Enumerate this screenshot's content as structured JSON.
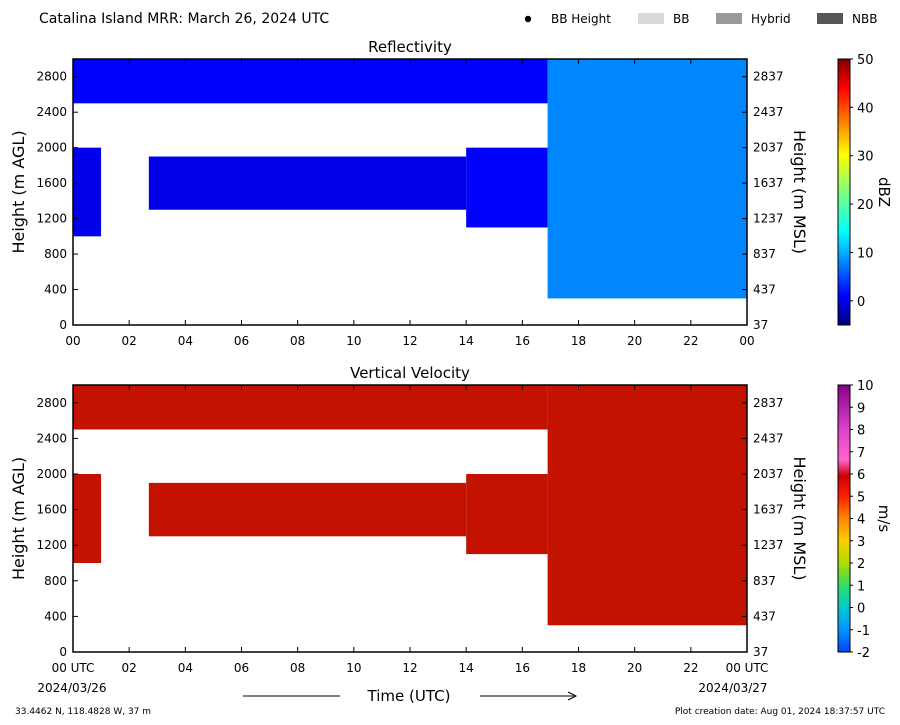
{
  "header": {
    "title": "Catalina Island MRR:  March 26, 2024 UTC",
    "legend": [
      {
        "label": "BB Height",
        "color": "#000000",
        "kind": "dot"
      },
      {
        "label": "BB",
        "color": "#d9d9d9",
        "kind": "box"
      },
      {
        "label": "Hybrid",
        "color": "#999999",
        "kind": "box"
      },
      {
        "label": "NBB",
        "color": "#555555",
        "kind": "box"
      }
    ]
  },
  "footer": {
    "location": "33.4462 N, 118.4828 W, 37 m",
    "creation": "Plot creation date: Aug 01, 2024 18:37:57 UTC",
    "xlabel": "Time (UTC)",
    "start_date": "2024/03/26",
    "end_date": "2024/03/27"
  },
  "chart_data": [
    {
      "type": "heatmap",
      "title": "Reflectivity",
      "ylabel": "Height (m AGL)",
      "ylabel_right": "Height (m MSL)",
      "x_ticks": [
        "00",
        "02",
        "04",
        "06",
        "08",
        "10",
        "12",
        "14",
        "16",
        "18",
        "20",
        "22",
        "00"
      ],
      "xlim": [
        0,
        24
      ],
      "y_ticks": [
        0,
        400,
        800,
        1200,
        1600,
        2000,
        2400,
        2800
      ],
      "y_ticks_right": [
        37,
        437,
        837,
        1237,
        1637,
        2037,
        2437,
        2837
      ],
      "ylim": [
        0,
        3000
      ],
      "colorbar": {
        "label": "dBZ",
        "ticks": [
          0,
          10,
          20,
          30,
          40,
          50
        ],
        "range": [
          -5,
          50
        ]
      },
      "echo_regions": [
        {
          "t": [
            0,
            16.9
          ],
          "h": [
            2500,
            3000
          ],
          "value": 1
        },
        {
          "t": [
            0,
            1.0
          ],
          "h": [
            1000,
            2000
          ],
          "value": 0
        },
        {
          "t": [
            2.7,
            14.0
          ],
          "h": [
            1300,
            1900
          ],
          "value": 0
        },
        {
          "t": [
            14.0,
            16.9
          ],
          "h": [
            1100,
            2000
          ],
          "value": 1
        },
        {
          "t": [
            16.9,
            24
          ],
          "h": [
            300,
            3000
          ],
          "value": 8
        }
      ]
    },
    {
      "type": "heatmap",
      "title": "Vertical Velocity",
      "ylabel": "Height (m AGL)",
      "ylabel_right": "Height (m MSL)",
      "x_ticks": [
        "00 UTC",
        "02",
        "04",
        "06",
        "08",
        "10",
        "12",
        "14",
        "16",
        "18",
        "20",
        "22",
        "00 UTC"
      ],
      "xlim": [
        0,
        24
      ],
      "y_ticks": [
        0,
        400,
        800,
        1200,
        1600,
        2000,
        2400,
        2800
      ],
      "y_ticks_right": [
        37,
        437,
        837,
        1237,
        1637,
        2037,
        2437,
        2837
      ],
      "ylim": [
        0,
        3000
      ],
      "colorbar": {
        "label": "m/s",
        "ticks": [
          -2,
          -1,
          0,
          1,
          2,
          3,
          4,
          5,
          6,
          7,
          8,
          9,
          10
        ],
        "range": [
          -2,
          10
        ]
      },
      "echo_regions": [
        {
          "t": [
            0,
            16.9
          ],
          "h": [
            2500,
            3000
          ],
          "value": 6
        },
        {
          "t": [
            0,
            1.0
          ],
          "h": [
            1000,
            2000
          ],
          "value": 6
        },
        {
          "t": [
            2.7,
            14.0
          ],
          "h": [
            1300,
            1900
          ],
          "value": 6
        },
        {
          "t": [
            14.0,
            16.9
          ],
          "h": [
            1100,
            2000
          ],
          "value": 6
        },
        {
          "t": [
            16.9,
            24
          ],
          "h": [
            300,
            3000
          ],
          "value": 6
        }
      ]
    }
  ]
}
